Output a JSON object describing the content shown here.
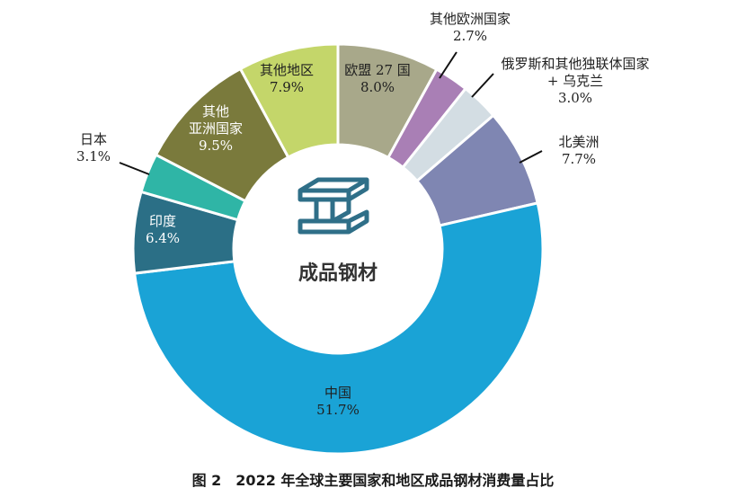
{
  "chart_data": {
    "type": "pie",
    "style": "donut",
    "center_label": "成品钢材",
    "center_icon": "steel-beam-icon",
    "caption": "图 2　2022 年全球主要国家和地区成品钢材消费量占比",
    "slices": [
      {
        "name": "欧盟 27 国",
        "value": 8.0,
        "pct_label": "8.0%",
        "color": "#a8a88a"
      },
      {
        "name": "其他欧洲国家",
        "value": 2.7,
        "pct_label": "2.7%",
        "color": "#a97fb5"
      },
      {
        "name": "俄罗斯和其他独联体国家 + 乌克兰",
        "value": 3.0,
        "pct_label": "3.0%",
        "color": "#d3dde3"
      },
      {
        "name": "北美洲",
        "value": 7.7,
        "pct_label": "7.7%",
        "color": "#7f86b2"
      },
      {
        "name": "中国",
        "value": 51.7,
        "pct_label": "51.7%",
        "color": "#1aa3d6"
      },
      {
        "name": "印度",
        "value": 6.4,
        "pct_label": "6.4%",
        "color": "#2b6f86"
      },
      {
        "name": "日本",
        "value": 3.1,
        "pct_label": "3.1%",
        "color": "#2fb5a6"
      },
      {
        "name": "其他亚洲国家",
        "value": 9.5,
        "pct_label": "9.5%",
        "color": "#7a7a3c"
      },
      {
        "name": "其他地区",
        "value": 7.9,
        "pct_label": "7.9%",
        "color": "#c4d66a"
      }
    ],
    "labels": {
      "eu": {
        "line1": "欧盟 27 国",
        "line2": "8.0%"
      },
      "other_europe": {
        "line1": "其他欧洲国家",
        "line2": "2.7%"
      },
      "cis": {
        "line1": "俄罗斯和其他独联体国家",
        "line2": "+ 乌克兰",
        "line3": "3.0%"
      },
      "north_america": {
        "line1": "北美洲",
        "line2": "7.7%"
      },
      "china": {
        "line1": "中国",
        "line2": "51.7%"
      },
      "india": {
        "line1": "印度",
        "line2": "6.4%"
      },
      "japan": {
        "line1": "日本",
        "line2": "3.1%"
      },
      "other_asia": {
        "line1": "其他",
        "line2": "亚洲国家",
        "line3": "9.5%"
      },
      "other_regions": {
        "line1": "其他地区",
        "line2": "7.9%"
      }
    }
  }
}
